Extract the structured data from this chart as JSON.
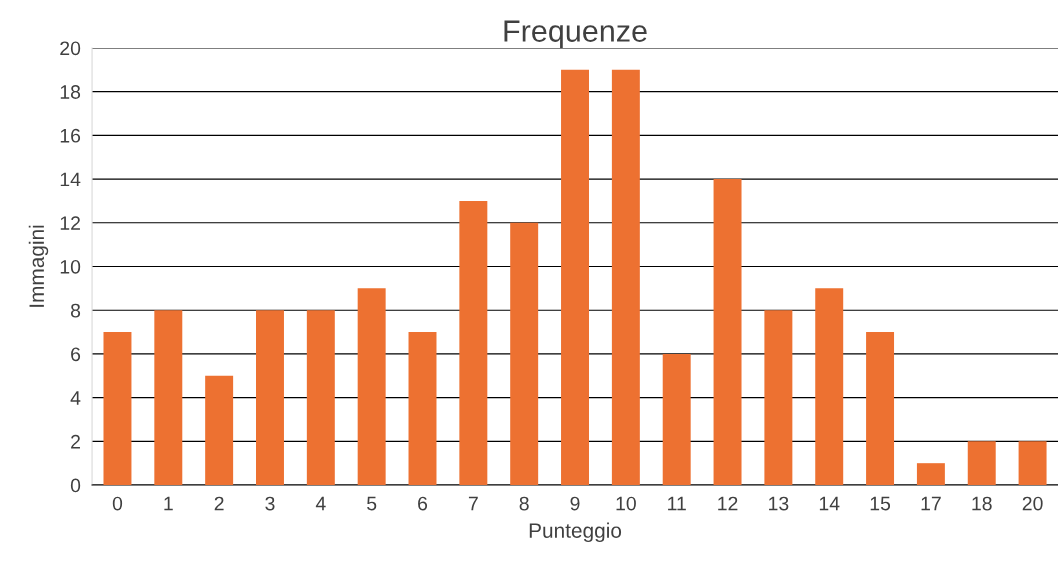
{
  "chart_data": {
    "type": "bar",
    "title": "Frequenze",
    "xlabel": "Punteggio",
    "ylabel": "Immagini",
    "categories": [
      "0",
      "1",
      "2",
      "3",
      "4",
      "5",
      "6",
      "7",
      "8",
      "9",
      "10",
      "11",
      "12",
      "13",
      "14",
      "15",
      "17",
      "18",
      "20"
    ],
    "values": [
      7,
      8,
      5,
      8,
      8,
      9,
      7,
      13,
      12,
      19,
      19,
      6,
      14,
      8,
      9,
      7,
      1,
      2,
      2
    ],
    "color": "#ed7131",
    "ylim": [
      0,
      20
    ],
    "yticks": [
      0,
      2,
      4,
      6,
      8,
      10,
      12,
      14,
      16,
      18,
      20
    ],
    "grid": "y"
  }
}
